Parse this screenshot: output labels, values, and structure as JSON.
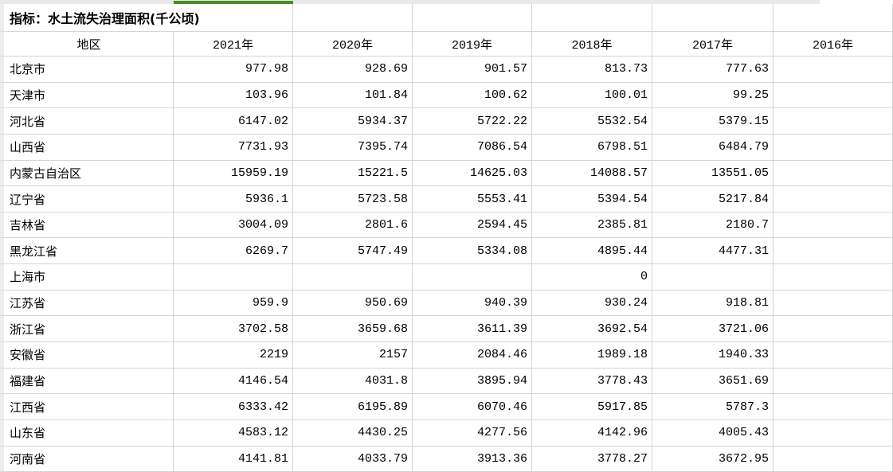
{
  "colors": {
    "selection_green": "#4a8c2c",
    "gridline": "#d5d5d5",
    "row_header_bg": "#ededed",
    "column_header_bg": "#e9e9e9"
  },
  "sheet": {
    "title": "指标：水土流失治理面积(千公顷)",
    "region_header": "地区",
    "year_headers": [
      "2021年",
      "2020年",
      "2019年",
      "2018年",
      "2017年",
      "2016年"
    ],
    "rows": [
      {
        "region": "北京市",
        "values": [
          "977.98",
          "928.69",
          "901.57",
          "813.73",
          "777.63",
          ""
        ]
      },
      {
        "region": "天津市",
        "values": [
          "103.96",
          "101.84",
          "100.62",
          "100.01",
          "99.25",
          ""
        ]
      },
      {
        "region": "河北省",
        "values": [
          "6147.02",
          "5934.37",
          "5722.22",
          "5532.54",
          "5379.15",
          ""
        ]
      },
      {
        "region": "山西省",
        "values": [
          "7731.93",
          "7395.74",
          "7086.54",
          "6798.51",
          "6484.79",
          ""
        ]
      },
      {
        "region": "内蒙古自治区",
        "values": [
          "15959.19",
          "15221.5",
          "14625.03",
          "14088.57",
          "13551.05",
          ""
        ]
      },
      {
        "region": "辽宁省",
        "values": [
          "5936.1",
          "5723.58",
          "5553.41",
          "5394.54",
          "5217.84",
          ""
        ]
      },
      {
        "region": "吉林省",
        "values": [
          "3004.09",
          "2801.6",
          "2594.45",
          "2385.81",
          "2180.7",
          ""
        ]
      },
      {
        "region": "黑龙江省",
        "values": [
          "6269.7",
          "5747.49",
          "5334.08",
          "4895.44",
          "4477.31",
          ""
        ]
      },
      {
        "region": "上海市",
        "values": [
          "",
          "",
          "",
          "0",
          "",
          ""
        ]
      },
      {
        "region": "江苏省",
        "values": [
          "959.9",
          "950.69",
          "940.39",
          "930.24",
          "918.81",
          ""
        ]
      },
      {
        "region": "浙江省",
        "values": [
          "3702.58",
          "3659.68",
          "3611.39",
          "3692.54",
          "3721.06",
          ""
        ]
      },
      {
        "region": "安徽省",
        "values": [
          "2219",
          "2157",
          "2084.46",
          "1989.18",
          "1940.33",
          ""
        ]
      },
      {
        "region": "福建省",
        "values": [
          "4146.54",
          "4031.8",
          "3895.94",
          "3778.43",
          "3651.69",
          ""
        ]
      },
      {
        "region": "江西省",
        "values": [
          "6333.42",
          "6195.89",
          "6070.46",
          "5917.85",
          "5787.3",
          ""
        ]
      },
      {
        "region": "山东省",
        "values": [
          "4583.12",
          "4430.25",
          "4277.56",
          "4142.96",
          "4005.43",
          ""
        ]
      },
      {
        "region": "河南省",
        "values": [
          "4141.81",
          "4033.79",
          "3913.36",
          "3778.27",
          "3672.95",
          ""
        ]
      }
    ]
  }
}
